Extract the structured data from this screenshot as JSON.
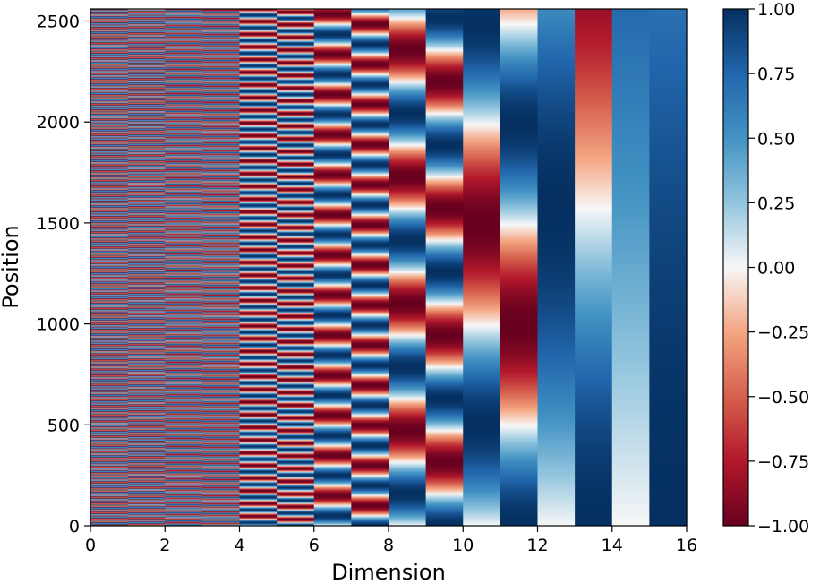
{
  "chart_data": {
    "type": "heatmap",
    "title": "",
    "xlabel": "Dimension",
    "ylabel": "Position",
    "xlim": [
      0,
      16
    ],
    "ylim": [
      0,
      2560
    ],
    "x_ticks": [
      "0",
      "2",
      "4",
      "6",
      "8",
      "10",
      "12",
      "14",
      "16"
    ],
    "y_ticks": [
      "0",
      "500",
      "1000",
      "1500",
      "2000",
      "2500"
    ],
    "n_dimensions": 16,
    "n_positions": 2560,
    "grid": false,
    "colormap": "RdBu",
    "colorbar": {
      "range": [
        -1.0,
        1.0
      ],
      "ticks": [
        "−1.00",
        "−0.75",
        "−0.50",
        "−0.25",
        "0.00",
        "0.25",
        "0.50",
        "0.75",
        "1.00"
      ],
      "stops": [
        {
          "value": -1.0,
          "color": "#67001f"
        },
        {
          "value": -0.75,
          "color": "#b2182b"
        },
        {
          "value": -0.5,
          "color": "#d6604d"
        },
        {
          "value": -0.25,
          "color": "#f4a582"
        },
        {
          "value": 0.0,
          "color": "#f7f7f7"
        },
        {
          "value": 0.25,
          "color": "#92c5de"
        },
        {
          "value": 0.5,
          "color": "#4393c3"
        },
        {
          "value": 0.75,
          "color": "#2166ac"
        },
        {
          "value": 1.0,
          "color": "#053061"
        }
      ]
    },
    "columns": [
      {
        "dimension": 0,
        "func": "sin",
        "period": 6.283
      },
      {
        "dimension": 1,
        "func": "cos",
        "period": 6.283
      },
      {
        "dimension": 2,
        "func": "sin",
        "period": 19.87
      },
      {
        "dimension": 3,
        "func": "cos",
        "period": 19.87
      },
      {
        "dimension": 4,
        "func": "sin",
        "period": 62.83
      },
      {
        "dimension": 5,
        "func": "cos",
        "period": 62.83
      },
      {
        "dimension": 6,
        "func": "sin",
        "period": 198.7
      },
      {
        "dimension": 7,
        "func": "cos",
        "period": 198.7
      },
      {
        "dimension": 8,
        "func": "sin",
        "period": 628.3
      },
      {
        "dimension": 9,
        "func": "cos",
        "period": 628.3
      },
      {
        "dimension": 10,
        "func": "sin",
        "period": 1987
      },
      {
        "dimension": 11,
        "func": "cos",
        "period": 1987
      },
      {
        "dimension": 12,
        "func": "sin",
        "period": 6283
      },
      {
        "dimension": 13,
        "func": "cos",
        "period": 6283
      },
      {
        "dimension": 14,
        "func": "sin",
        "period": 19869
      },
      {
        "dimension": 15,
        "func": "cos",
        "period": 19869
      }
    ]
  }
}
